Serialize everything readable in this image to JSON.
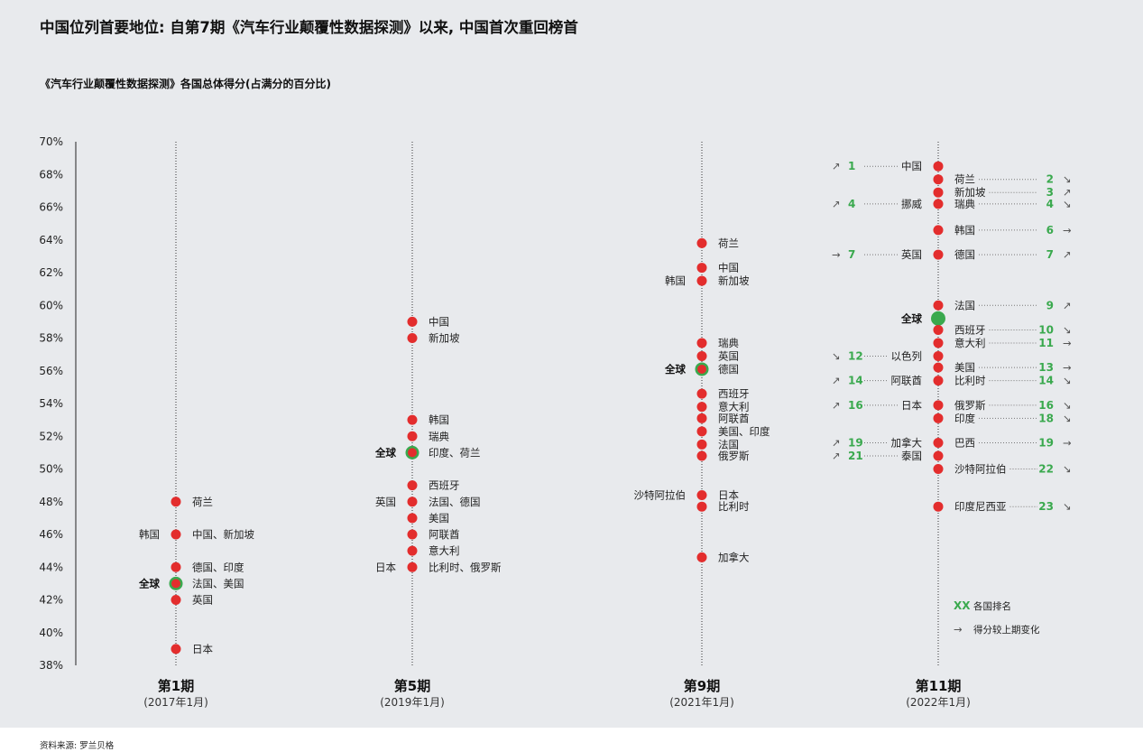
{
  "title": "中国位列首要地位: 自第7期《汽车行业颠覆性数据探测》以来, 中国首次重回榜首",
  "source": "资料来源: 罗兰贝格",
  "chart_data": {
    "type": "scatter",
    "subtitle": "《汽车行业颠覆性数据探测》各国总体得分(占满分的百分比)",
    "ylim": [
      38,
      70
    ],
    "yticks": [
      "38%",
      "40%",
      "42%",
      "44%",
      "46%",
      "48%",
      "50%",
      "52%",
      "54%",
      "56%",
      "58%",
      "60%",
      "62%",
      "64%",
      "66%",
      "68%",
      "70%"
    ],
    "colors": {
      "country": "#e32d2d",
      "global": "#3aa94e"
    },
    "periods": [
      {
        "title": "第1期",
        "date": "(2017年1月)",
        "points": [
          {
            "y": 48,
            "right": "荷兰"
          },
          {
            "y": 46,
            "left": "韩国",
            "right": "中国、新加坡"
          },
          {
            "y": 44,
            "right": "德国、印度"
          },
          {
            "y": 43,
            "global": true,
            "left": "全球",
            "right": "法国、美国"
          },
          {
            "y": 42,
            "right": "英国"
          },
          {
            "y": 39,
            "right": "日本"
          }
        ]
      },
      {
        "title": "第5期",
        "date": "(2019年1月)",
        "points": [
          {
            "y": 59,
            "right": "中国"
          },
          {
            "y": 58,
            "right": "新加坡"
          },
          {
            "y": 53,
            "right": "韩国"
          },
          {
            "y": 52,
            "right": "瑞典"
          },
          {
            "y": 51,
            "global": true,
            "left": "全球",
            "right": "印度、荷兰"
          },
          {
            "y": 49,
            "right": "西班牙"
          },
          {
            "y": 48,
            "left": "英国",
            "right": "法国、德国"
          },
          {
            "y": 47,
            "right": "美国"
          },
          {
            "y": 46,
            "right": "阿联酋"
          },
          {
            "y": 45,
            "right": "意大利"
          },
          {
            "y": 44,
            "left": "日本",
            "right": "比利时、俄罗斯"
          }
        ]
      },
      {
        "title": "第9期",
        "date": "(2021年1月)",
        "points": [
          {
            "y": 63.8,
            "right": "荷兰"
          },
          {
            "y": 62.3,
            "right": "中国"
          },
          {
            "y": 61.5,
            "left": "韩国",
            "right": "新加坡"
          },
          {
            "y": 57.7,
            "right": "瑞典"
          },
          {
            "y": 56.9,
            "right": "英国"
          },
          {
            "y": 56.1,
            "global": true,
            "left": "全球",
            "right": "德国"
          },
          {
            "y": 54.6,
            "right": "西班牙"
          },
          {
            "y": 53.8,
            "right": "意大利"
          },
          {
            "y": 53.1,
            "right": "阿联酋"
          },
          {
            "y": 52.3,
            "right": "美国、印度"
          },
          {
            "y": 51.5,
            "right": "法国"
          },
          {
            "y": 50.8,
            "right": "俄罗斯"
          },
          {
            "y": 48.4,
            "left": "沙特阿拉伯",
            "right": "日本"
          },
          {
            "y": 47.7,
            "right": "比利时"
          },
          {
            "y": 44.6,
            "right": "加拿大"
          }
        ]
      },
      {
        "title": "第11期",
        "date": "(2022年1月)",
        "points": [
          {
            "y": 68.5,
            "left": "中国",
            "left_rank": "1",
            "left_trend": "↗"
          },
          {
            "y": 67.7,
            "right": "荷兰",
            "right_rank": "2",
            "right_trend": "↘"
          },
          {
            "y": 66.9,
            "right": "新加坡",
            "right_rank": "3",
            "right_trend": "↗"
          },
          {
            "y": 66.2,
            "left": "挪威",
            "left_rank": "4",
            "left_trend": "↗",
            "right": "瑞典",
            "right_rank": "4",
            "right_trend": "↘"
          },
          {
            "y": 64.6,
            "right": "韩国",
            "right_rank": "6",
            "right_trend": "→"
          },
          {
            "y": 63.1,
            "left": "英国",
            "left_rank": "7",
            "left_trend": "→",
            "right": "德国",
            "right_rank": "7",
            "right_trend": "↗"
          },
          {
            "y": 60.0,
            "right": "法国",
            "right_rank": "9",
            "right_trend": "↗"
          },
          {
            "y": 59.2,
            "global": true,
            "left": "全球"
          },
          {
            "y": 58.5,
            "right": "西班牙",
            "right_rank": "10",
            "right_trend": "↘"
          },
          {
            "y": 57.7,
            "right": "意大利",
            "right_rank": "11",
            "right_trend": "→"
          },
          {
            "y": 56.9,
            "left": "以色列",
            "left_rank": "12",
            "left_trend": "↘"
          },
          {
            "y": 56.2,
            "right": "美国",
            "right_rank": "13",
            "right_trend": "→"
          },
          {
            "y": 55.4,
            "left": "阿联酋",
            "left_rank": "14",
            "left_trend": "↗",
            "right": "比利时",
            "right_rank": "14",
            "right_trend": "↘"
          },
          {
            "y": 53.9,
            "left": "日本",
            "left_rank": "16",
            "left_trend": "↗",
            "right": "俄罗斯",
            "right_rank": "16",
            "right_trend": "↘"
          },
          {
            "y": 53.1,
            "right": "印度",
            "right_rank": "18",
            "right_trend": "↘"
          },
          {
            "y": 51.6,
            "left": "加拿大",
            "left_rank": "19",
            "left_trend": "↗",
            "right": "巴西",
            "right_rank": "19",
            "right_trend": "→"
          },
          {
            "y": 50.8,
            "left": "泰国",
            "left_rank": "21",
            "left_trend": "↗"
          },
          {
            "y": 50.0,
            "right": "沙特阿拉伯",
            "right_rank": "22",
            "right_trend": "↘"
          },
          {
            "y": 47.7,
            "right": "印度尼西亚",
            "right_rank": "23",
            "right_trend": "↘"
          }
        ]
      }
    ],
    "legend": {
      "rank_symbol": "XX",
      "rank_text": "各国排名",
      "arrow_symbol": "→",
      "arrow_text": "得分较上期变化"
    }
  }
}
